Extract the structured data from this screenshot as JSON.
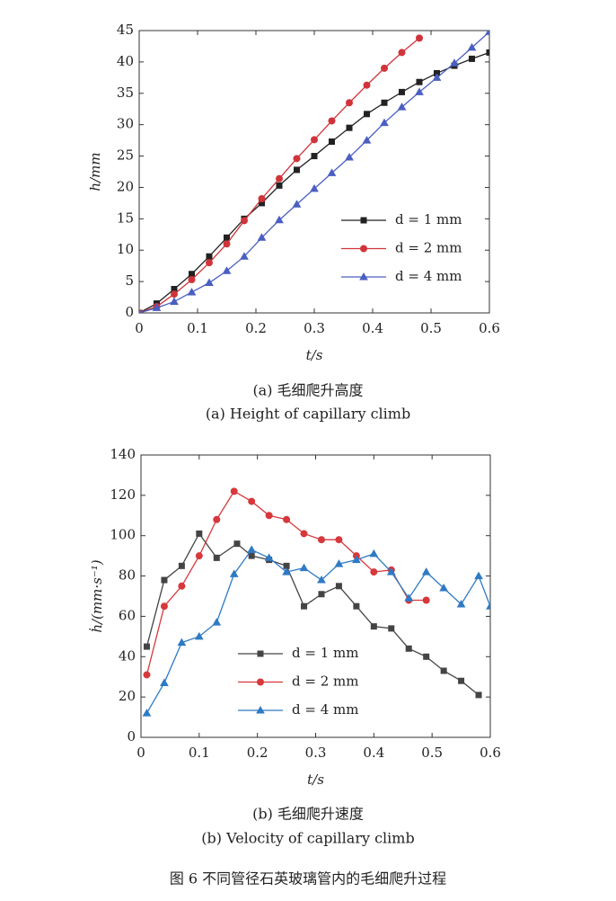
{
  "chart_data": [
    {
      "type": "line",
      "xlabel": "t/s",
      "ylabel": "h/mm",
      "xlim": [
        0,
        0.6
      ],
      "xticks": [
        0,
        0.1,
        0.2,
        0.3,
        0.4,
        0.5,
        0.6
      ],
      "ylim": [
        0,
        45
      ],
      "yticks": [
        0,
        5,
        10,
        15,
        20,
        25,
        30,
        35,
        40,
        45
      ],
      "series": [
        {
          "name": "d = 1 mm",
          "color": "#222222",
          "marker": "square",
          "x": [
            0,
            0.03,
            0.06,
            0.09,
            0.12,
            0.15,
            0.18,
            0.21,
            0.24,
            0.27,
            0.3,
            0.33,
            0.36,
            0.39,
            0.42,
            0.45,
            0.48,
            0.51,
            0.54,
            0.57,
            0.6
          ],
          "values": [
            0,
            1.5,
            3.8,
            6.2,
            9,
            12,
            15,
            17.5,
            20.3,
            22.8,
            25,
            27.3,
            29.5,
            31.7,
            33.5,
            35.2,
            36.8,
            38.2,
            39.4,
            40.5,
            41.5
          ]
        },
        {
          "name": "d = 2 mm",
          "color": "#d0343a",
          "marker": "circle",
          "x": [
            0,
            0.03,
            0.06,
            0.09,
            0.12,
            0.15,
            0.18,
            0.21,
            0.24,
            0.27,
            0.3,
            0.33,
            0.36,
            0.39,
            0.42,
            0.45,
            0.48
          ],
          "values": [
            0,
            1,
            3,
            5.3,
            8,
            11,
            14.7,
            18.2,
            21.4,
            24.6,
            27.6,
            30.6,
            33.5,
            36.3,
            39,
            41.5,
            43.8
          ]
        },
        {
          "name": "d = 4 mm",
          "color": "#4a5fc1",
          "marker": "triangle",
          "x": [
            0,
            0.03,
            0.06,
            0.09,
            0.12,
            0.15,
            0.18,
            0.21,
            0.24,
            0.27,
            0.3,
            0.33,
            0.36,
            0.39,
            0.42,
            0.45,
            0.48,
            0.51,
            0.54,
            0.57,
            0.6
          ],
          "values": [
            0,
            0.8,
            1.8,
            3.3,
            4.8,
            6.7,
            9,
            12,
            14.8,
            17.3,
            19.8,
            22.3,
            24.8,
            27.5,
            30.3,
            32.8,
            35.2,
            37.5,
            39.8,
            42.3,
            44.8
          ]
        }
      ],
      "caption_cn": "(a) 毛细爬升高度",
      "caption_en": "(a) Height of capillary climb"
    },
    {
      "type": "line",
      "xlabel": "t/s",
      "ylabel": "ḣ/(mm·s⁻¹)",
      "xlim": [
        0,
        0.6
      ],
      "xticks": [
        0,
        0.1,
        0.2,
        0.3,
        0.4,
        0.5,
        0.6
      ],
      "ylim": [
        0,
        140
      ],
      "yticks": [
        0,
        20,
        40,
        60,
        80,
        100,
        120,
        140
      ],
      "series": [
        {
          "name": "d = 1 mm",
          "color": "#444444",
          "marker": "square",
          "x": [
            0.01,
            0.04,
            0.07,
            0.1,
            0.13,
            0.165,
            0.19,
            0.22,
            0.25,
            0.28,
            0.31,
            0.34,
            0.37,
            0.4,
            0.43,
            0.46,
            0.49,
            0.52,
            0.55,
            0.58
          ],
          "values": [
            45,
            78,
            85,
            101,
            89,
            96,
            90,
            88,
            85,
            65,
            71,
            75,
            65,
            55,
            54,
            44,
            40,
            33,
            28,
            21
          ]
        },
        {
          "name": "d = 2 mm",
          "color": "#d6383c",
          "marker": "circle",
          "x": [
            0.01,
            0.04,
            0.07,
            0.1,
            0.13,
            0.16,
            0.19,
            0.22,
            0.25,
            0.28,
            0.31,
            0.34,
            0.37,
            0.4,
            0.43,
            0.46,
            0.49
          ],
          "values": [
            31,
            65,
            75,
            90,
            108,
            122,
            117,
            110,
            108,
            101,
            98,
            98,
            90,
            82,
            83,
            68,
            68
          ]
        },
        {
          "name": "d = 4 mm",
          "color": "#2f7ac4",
          "marker": "triangle",
          "x": [
            0.01,
            0.04,
            0.07,
            0.1,
            0.13,
            0.16,
            0.19,
            0.22,
            0.25,
            0.28,
            0.31,
            0.34,
            0.37,
            0.4,
            0.43,
            0.46,
            0.49,
            0.52,
            0.55,
            0.58,
            0.6
          ],
          "values": [
            12,
            27,
            47,
            50,
            57,
            81,
            93,
            89,
            82,
            84,
            78,
            86,
            88,
            91,
            82,
            69,
            82,
            74,
            66,
            80,
            65
          ]
        }
      ],
      "caption_cn": "(b) 毛细爬升速度",
      "caption_en": "(b) Velocity of capillary climb"
    }
  ],
  "figure_caption": "图 6  不同管径石英玻璃管内的毛细爬升过程"
}
